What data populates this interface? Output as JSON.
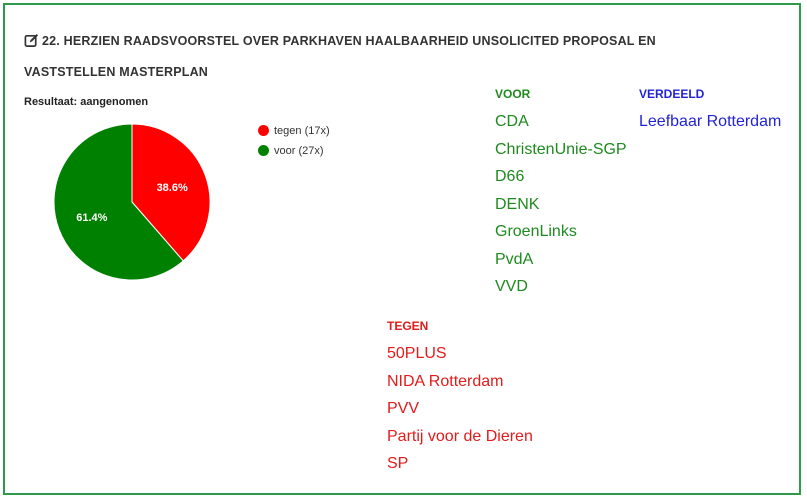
{
  "title": "22. HERZIEN RAADSVOORSTEL OVER PARKHAVEN HAALBAARHEID UNSOLICITED PROPOSAL EN VASTSTELLEN MASTERPLAN",
  "result_label": "Resultaat: aangenomen",
  "chart_data": {
    "type": "pie",
    "slices": [
      {
        "name": "tegen",
        "count": 17,
        "percent": 38.6,
        "label": "38.6%",
        "color": "#ff0000"
      },
      {
        "name": "voor",
        "count": 27,
        "percent": 61.4,
        "label": "61.4%",
        "color": "#008000"
      }
    ],
    "legend": [
      {
        "label": "tegen (17x)",
        "color": "#ff0000"
      },
      {
        "label": "voor (27x)",
        "color": "#008000"
      }
    ],
    "legend_placement": "right"
  },
  "voor": {
    "heading": "VOOR",
    "color": "#1f8a1f",
    "parties": [
      "CDA",
      "ChristenUnie-SGP",
      "D66",
      "DENK",
      "GroenLinks",
      "PvdA",
      "VVD"
    ]
  },
  "verdeeld": {
    "heading": "VERDEELD",
    "color": "#2323d6",
    "parties": [
      "Leefbaar Rotterdam"
    ]
  },
  "tegen": {
    "heading": "TEGEN",
    "color": "#e31b1b",
    "parties": [
      "50PLUS",
      "NIDA Rotterdam",
      "PVV",
      "Partij voor de Dieren",
      "SP"
    ]
  },
  "icons": {
    "title_icon": "edit-icon"
  },
  "colors": {
    "border": "#2e9a4a"
  }
}
